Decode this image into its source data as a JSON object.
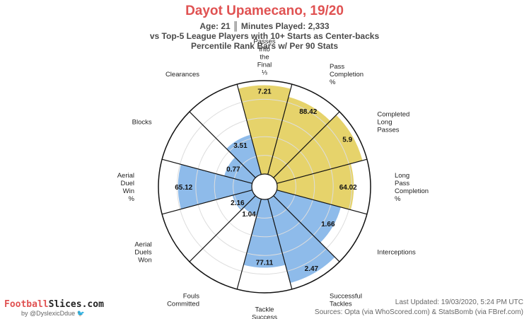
{
  "header": {
    "title": "Dayot Upamecano, 19/20",
    "line1": "Age: 21 ║ Minutes Played: 2,333",
    "line2": "vs Top-5 League Players with 10+ Starts as Center-backs",
    "line3": "Percentile Rank Bars w/ Per 90 Stats"
  },
  "colors": {
    "title": "#e05252",
    "passing": "#e6d36b",
    "defending": "#8ebbea",
    "grid": "#dddddd",
    "wedge_border": "#111111"
  },
  "chart_data": {
    "type": "polar-bar",
    "title": "Dayot Upamecano, 19/20",
    "scale": "percentile",
    "rlim": [
      0,
      100
    ],
    "grid": true,
    "categories": [
      {
        "label": "Passes Into the Final ⅓",
        "value": "7.21",
        "percentile": 95,
        "group": "passing"
      },
      {
        "label": "Pass Completion %",
        "value": "88.42",
        "percentile": 86,
        "group": "passing"
      },
      {
        "label": "Completed Long Passes",
        "value": "5.9",
        "percentile": 95,
        "group": "passing"
      },
      {
        "label": "Long Pass Completion %",
        "value": "64.02",
        "percentile": 82,
        "group": "passing"
      },
      {
        "label": "Interceptions",
        "value": "1.66",
        "percentile": 71,
        "group": "defending"
      },
      {
        "label": "Successful Tackles",
        "value": "2.47",
        "percentile": 93,
        "group": "defending"
      },
      {
        "label": "Tackle Success %",
        "value": "77.11",
        "percentile": 73,
        "group": "defending"
      },
      {
        "label": "Fouls Committed",
        "value": "1.04",
        "percentile": 18,
        "group": "defending"
      },
      {
        "label": "Aerial Duels Won",
        "value": "2.16",
        "percentile": 22,
        "group": "defending"
      },
      {
        "label": "Aerial Duel Win %",
        "value": "65.12",
        "percentile": 79,
        "group": "defending"
      },
      {
        "label": "Blocks",
        "value": "0.77",
        "percentile": 31,
        "group": "defending"
      },
      {
        "label": "Clearances",
        "value": "3.51",
        "percentile": 44,
        "group": "defending"
      }
    ]
  },
  "footer": {
    "brand_part1": "Football",
    "brand_part2": "Slices.com",
    "byline": "by @DyslexicDdue",
    "updated": "Last Updated: 19/03/2020, 5:24 PM UTC",
    "sources": "Sources: Opta (via WhoScored.com) & StatsBomb (via FBref.com)",
    "twitter_icon": "twitter-bird-icon"
  }
}
